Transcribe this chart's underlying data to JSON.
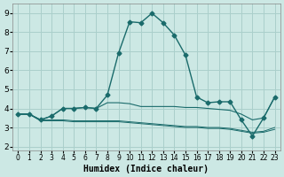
{
  "xlabel": "Humidex (Indice chaleur)",
  "bg_color": "#cce8e4",
  "grid_color": "#aacfcb",
  "line_color": "#1a6b6b",
  "xlim": [
    -0.5,
    23.5
  ],
  "ylim": [
    1.8,
    9.5
  ],
  "xticks": [
    0,
    1,
    2,
    3,
    4,
    5,
    6,
    7,
    8,
    9,
    10,
    11,
    12,
    13,
    14,
    15,
    16,
    17,
    18,
    19,
    20,
    21,
    22,
    23
  ],
  "yticks": [
    2,
    3,
    4,
    5,
    6,
    7,
    8,
    9
  ],
  "curve1_x": [
    0,
    1,
    2,
    3,
    4,
    5,
    6,
    7,
    8,
    9,
    10,
    11,
    12,
    13,
    14,
    15,
    16,
    17,
    18,
    19,
    20,
    21,
    22,
    23
  ],
  "curve1_y": [
    3.7,
    3.7,
    3.4,
    3.6,
    4.0,
    4.0,
    4.05,
    4.0,
    4.7,
    6.9,
    8.55,
    8.5,
    9.0,
    8.5,
    7.85,
    6.8,
    4.6,
    4.3,
    4.35,
    4.35,
    3.4,
    2.55,
    3.5,
    4.6
  ],
  "curve2_x": [
    0,
    1,
    2,
    3,
    4,
    5,
    6,
    7,
    8,
    9,
    10,
    11,
    12,
    13,
    14,
    15,
    16,
    17,
    18,
    19,
    20,
    21,
    22,
    23
  ],
  "curve2_y": [
    3.7,
    3.7,
    3.4,
    3.6,
    4.0,
    4.0,
    4.05,
    4.0,
    4.3,
    4.3,
    4.25,
    4.1,
    4.1,
    4.1,
    4.1,
    4.05,
    4.05,
    4.0,
    3.95,
    3.9,
    3.7,
    3.4,
    3.5,
    4.6
  ],
  "curve3_x": [
    0,
    1,
    2,
    3,
    4,
    5,
    6,
    7,
    8,
    9,
    10,
    11,
    12,
    13,
    14,
    15,
    16,
    17,
    18,
    19,
    20,
    21,
    22,
    23
  ],
  "curve3_y": [
    3.7,
    3.7,
    3.4,
    3.4,
    3.4,
    3.35,
    3.35,
    3.35,
    3.35,
    3.35,
    3.3,
    3.25,
    3.2,
    3.15,
    3.1,
    3.05,
    3.05,
    3.0,
    3.0,
    2.95,
    2.85,
    2.75,
    2.8,
    3.0
  ],
  "curve4_x": [
    0,
    1,
    2,
    3,
    4,
    5,
    6,
    7,
    8,
    9,
    10,
    11,
    12,
    13,
    14,
    15,
    16,
    17,
    18,
    19,
    20,
    21,
    22,
    23
  ],
  "curve4_y": [
    3.7,
    3.7,
    3.35,
    3.35,
    3.35,
    3.3,
    3.3,
    3.3,
    3.3,
    3.3,
    3.25,
    3.2,
    3.15,
    3.1,
    3.05,
    3.0,
    3.0,
    2.95,
    2.95,
    2.9,
    2.8,
    2.7,
    2.75,
    2.9
  ]
}
